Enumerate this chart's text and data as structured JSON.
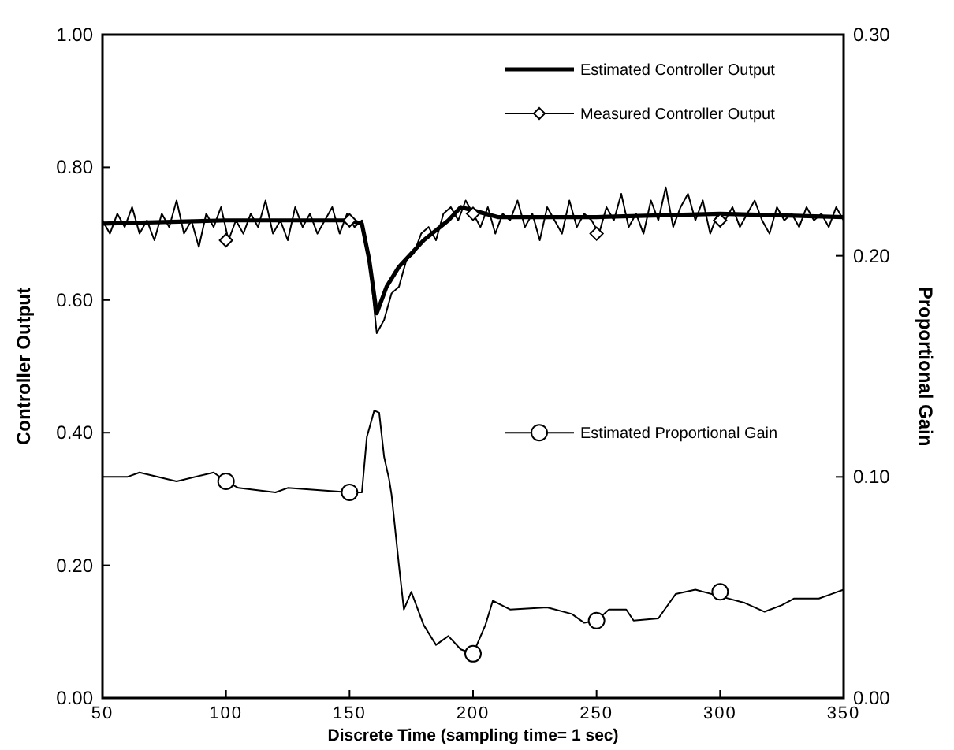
{
  "chart_data": {
    "type": "line",
    "xlabel": "Discrete Time (sampling time= 1 sec)",
    "ylabel": "Controller Output",
    "y2label": "Proportional Gain",
    "xlim": [
      50,
      350
    ],
    "xticks": [
      50,
      100,
      150,
      200,
      250,
      300,
      350
    ],
    "ylim": [
      0,
      1
    ],
    "yticks": [
      {
        "value": 0,
        "label": "0.00"
      },
      {
        "value": 0.2,
        "label": "0.20"
      },
      {
        "value": 0.4,
        "label": "0.40"
      },
      {
        "value": 0.6,
        "label": "0.60"
      },
      {
        "value": 0.8,
        "label": "0.80"
      },
      {
        "value": 1,
        "label": "1.00"
      }
    ],
    "y2lim": [
      0,
      0.3
    ],
    "y2ticks": [
      {
        "value": 0,
        "label": "0.00"
      },
      {
        "value": 0.1,
        "label": "0.10"
      },
      {
        "value": 0.2,
        "label": "0.20"
      },
      {
        "value": 0.3,
        "label": "0.30"
      }
    ],
    "grid": false,
    "legend": "top right",
    "series": [
      {
        "name": "Measured Controller Output",
        "color": "#000000",
        "x": [
          50,
          53,
          56,
          59,
          62,
          65,
          68,
          71,
          74,
          77,
          80,
          83,
          86,
          89,
          92,
          95,
          98,
          101,
          104,
          107,
          110,
          113,
          116,
          119,
          122,
          125,
          128,
          131,
          134,
          137,
          140,
          143,
          146,
          149,
          152,
          155,
          158,
          161,
          164,
          167,
          170,
          173,
          176,
          179,
          182,
          185,
          188,
          191,
          194,
          197,
          200,
          203,
          206,
          209,
          212,
          215,
          218,
          221,
          224,
          227,
          230,
          233,
          236,
          239,
          242,
          245,
          248,
          251,
          254,
          257,
          260,
          263,
          266,
          269,
          272,
          275,
          278,
          281,
          284,
          287,
          290,
          293,
          296,
          299,
          302,
          305,
          308,
          311,
          314,
          317,
          320,
          323,
          326,
          329,
          332,
          335,
          338,
          341,
          344,
          347,
          350
        ],
        "values": [
          0.72,
          0.7,
          0.73,
          0.71,
          0.74,
          0.7,
          0.72,
          0.69,
          0.73,
          0.71,
          0.75,
          0.7,
          0.72,
          0.68,
          0.73,
          0.71,
          0.74,
          0.69,
          0.72,
          0.7,
          0.73,
          0.71,
          0.75,
          0.7,
          0.72,
          0.69,
          0.74,
          0.71,
          0.73,
          0.7,
          0.72,
          0.74,
          0.7,
          0.73,
          0.71,
          0.72,
          0.66,
          0.55,
          0.57,
          0.61,
          0.62,
          0.66,
          0.67,
          0.7,
          0.71,
          0.69,
          0.73,
          0.74,
          0.72,
          0.75,
          0.73,
          0.71,
          0.74,
          0.7,
          0.73,
          0.72,
          0.75,
          0.71,
          0.73,
          0.69,
          0.74,
          0.72,
          0.7,
          0.75,
          0.71,
          0.73,
          0.72,
          0.7,
          0.74,
          0.72,
          0.76,
          0.71,
          0.73,
          0.7,
          0.75,
          0.72,
          0.77,
          0.71,
          0.74,
          0.76,
          0.72,
          0.75,
          0.7,
          0.73,
          0.72,
          0.74,
          0.71,
          0.73,
          0.75,
          0.72,
          0.7,
          0.74,
          0.72,
          0.73,
          0.71,
          0.74,
          0.72,
          0.73,
          0.71,
          0.74,
          0.72
        ]
      },
      {
        "type": "scatter",
        "color": "#000000",
        "marker": "diamond",
        "x": [
          100,
          150,
          200,
          250,
          300
        ],
        "values": [
          0.69,
          0.72,
          0.73,
          0.7,
          0.72
        ]
      },
      {
        "name": "Estimated Controller Output",
        "color": "#000000",
        "marker": "none",
        "x": [
          50,
          100,
          150,
          155,
          158,
          161,
          165,
          170,
          180,
          190,
          195,
          200,
          210,
          250,
          300,
          350
        ],
        "values": [
          0.715,
          0.72,
          0.72,
          0.715,
          0.66,
          0.58,
          0.62,
          0.65,
          0.69,
          0.72,
          0.74,
          0.735,
          0.725,
          0.725,
          0.73,
          0.725
        ]
      },
      {
        "name": "Estimated Proportional Gain",
        "color": "#000000",
        "axis": "y2",
        "x": [
          50,
          60,
          65,
          80,
          95,
          100,
          105,
          120,
          125,
          150,
          155,
          157,
          160,
          162,
          164,
          166,
          167,
          170,
          172,
          175,
          180,
          185,
          190,
          195,
          200,
          205,
          208,
          215,
          230,
          240,
          245,
          250,
          255,
          262,
          265,
          275,
          282,
          290,
          300,
          310,
          318,
          325,
          330,
          340,
          345,
          350
        ],
        "values": [
          0.1,
          0.1,
          0.102,
          0.098,
          0.102,
          0.098,
          0.095,
          0.093,
          0.095,
          0.093,
          0.093,
          0.118,
          0.13,
          0.129,
          0.109,
          0.099,
          0.092,
          0.06,
          0.04,
          0.048,
          0.033,
          0.024,
          0.028,
          0.022,
          0.02,
          0.033,
          0.044,
          0.04,
          0.041,
          0.038,
          0.034,
          0.035,
          0.04,
          0.04,
          0.035,
          0.036,
          0.047,
          0.049,
          0.046,
          0.043,
          0.039,
          0.042,
          0.045,
          0.045,
          0.047,
          0.049
        ]
      },
      {
        "type": "scatter",
        "color": "#000000",
        "marker": "circle",
        "axis": "y2",
        "x": [
          100,
          150,
          200,
          250,
          300
        ],
        "values": [
          0.098,
          0.093,
          0.02,
          0.035,
          0.048
        ]
      }
    ]
  }
}
